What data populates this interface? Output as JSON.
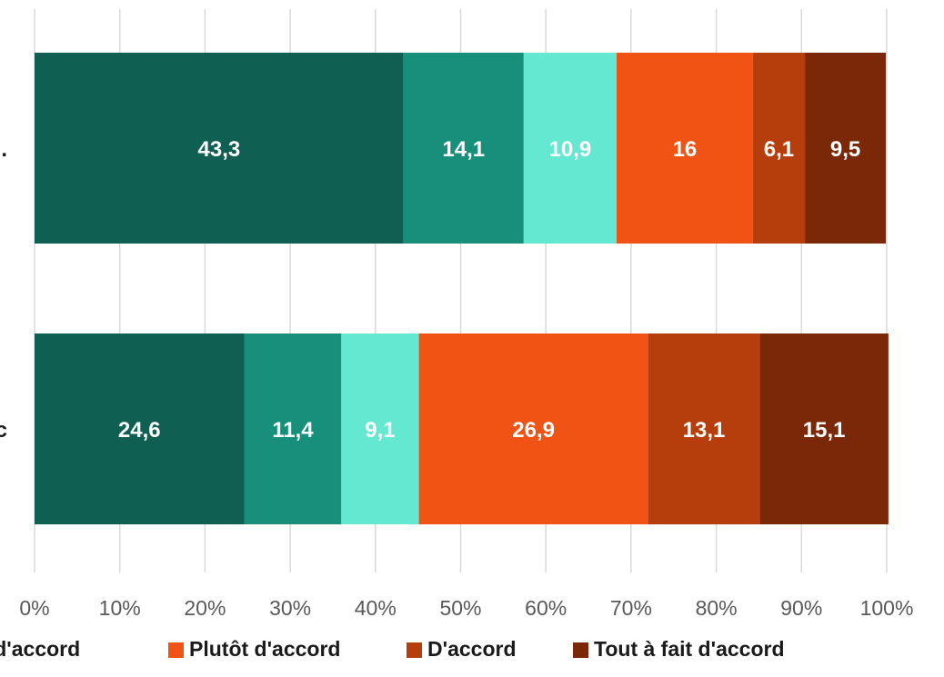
{
  "chart_data": {
    "type": "bar",
    "orientation": "horizontal",
    "stacked": true,
    "categories": [
      ".",
      "c"
    ],
    "series": [
      {
        "values": [
          43.3,
          24.6
        ],
        "labels": [
          "43,3",
          "24,6"
        ],
        "color": "#0f5f52"
      },
      {
        "values": [
          14.1,
          11.4
        ],
        "labels": [
          "14,1",
          "11,4"
        ],
        "color": "#178f7a"
      },
      {
        "values": [
          10.9,
          9.1
        ],
        "labels": [
          "10,9",
          "9,1"
        ],
        "color": "#64e8d2"
      },
      {
        "name": "Plutôt d'accord",
        "values": [
          16,
          26.9
        ],
        "labels": [
          "16",
          "26,9"
        ],
        "color": "#f05314"
      },
      {
        "name": "D'accord",
        "values": [
          6.1,
          13.1
        ],
        "labels": [
          "6,1",
          "13,1"
        ],
        "color": "#b63d0c"
      },
      {
        "name": "Tout à fait d'accord",
        "values": [
          9.5,
          15.1
        ],
        "labels": [
          "9,5",
          "15,1"
        ],
        "color": "#7b2808"
      }
    ],
    "x_ticks": [
      "0%",
      "10%",
      "20%",
      "30%",
      "40%",
      "50%",
      "60%",
      "70%",
      "80%",
      "90%",
      "100%"
    ],
    "xlim": [
      0,
      100
    ],
    "grid": true,
    "legend": {
      "placement": "bottom",
      "items": [
        {
          "label": "ns d'accord",
          "color": null
        },
        {
          "label": "Plutôt d'accord",
          "color": "#f05314"
        },
        {
          "label": "D'accord",
          "color": "#b63d0c"
        },
        {
          "label": "Tout à fait d'accord",
          "color": "#7b2808"
        }
      ]
    }
  }
}
